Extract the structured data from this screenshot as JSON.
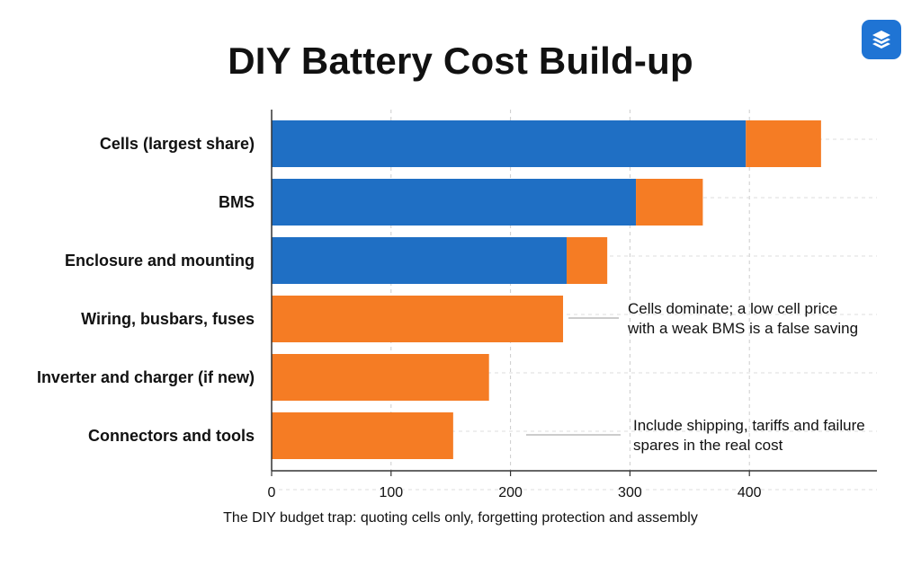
{
  "header": {
    "title": "DIY Battery Cost Build-up",
    "logo_icon": "stacked-layers-icon"
  },
  "caption": "The DIY budget trap: quoting cells only, forgetting protection and assembly",
  "colors": {
    "primary": "#1f6fc4",
    "secondary": "#f57c24",
    "grid": "#cccccc",
    "axis": "#333333"
  },
  "chart_data": {
    "type": "bar",
    "orientation": "horizontal",
    "stacked": true,
    "categories": [
      "Cells (largest share)",
      "BMS",
      "Enclosure and mounting",
      "Wiring, busbars, fuses",
      "Inverter and charger (if new)",
      "Connectors and tools"
    ],
    "series": [
      {
        "color": "#1f6fc4",
        "values": [
          397,
          305,
          247,
          0,
          0,
          0
        ]
      },
      {
        "color": "#f57c24",
        "values": [
          63,
          56,
          34,
          244,
          182,
          152
        ]
      }
    ],
    "xticks": [
      "0",
      "100",
      "200",
      "300",
      "400"
    ],
    "xlim": [
      0,
      510
    ],
    "grid": true,
    "annotations": [
      {
        "lines": [
          "Cells dominate; a low cell price",
          "with a weak BMS is a false saving"
        ],
        "category_index": 3,
        "value": 320
      },
      {
        "lines": [
          "Include shipping, tariffs and failure",
          "spares in the real cost"
        ],
        "category_index": 5,
        "value": 210
      }
    ]
  }
}
